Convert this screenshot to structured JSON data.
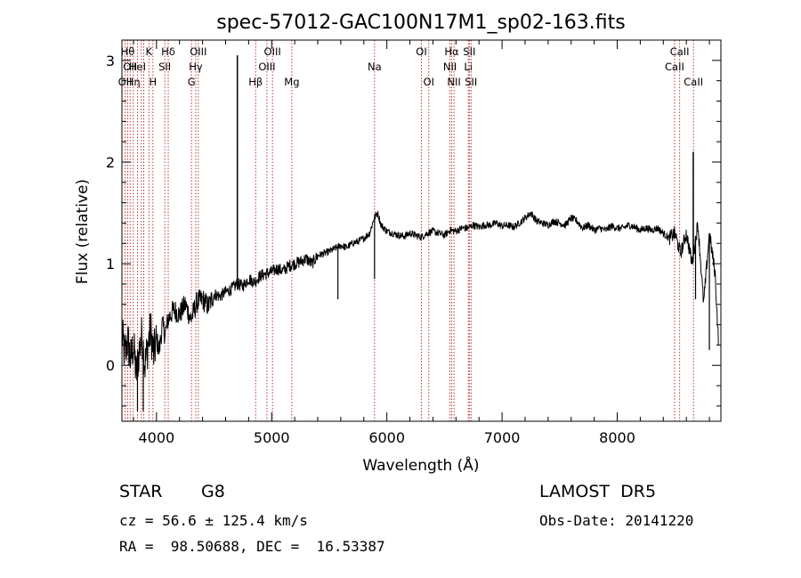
{
  "chart_data": {
    "type": "line",
    "title": "spec-57012-GAC100N17M1_sp02-163.fits",
    "xlabel": "Wavelength (Å)",
    "ylabel": "Flux (relative)",
    "xlim": [
      3700,
      8900
    ],
    "ylim": [
      -0.55,
      3.2
    ],
    "x_ticks": [
      4000,
      5000,
      6000,
      7000,
      8000
    ],
    "y_ticks": [
      0,
      1,
      2,
      3
    ],
    "grid": false,
    "series": [
      {
        "x": [
          3700,
          3725,
          3750,
          3775,
          3800,
          3825,
          3850,
          3875,
          3900,
          3925,
          3950,
          3975,
          4000,
          4025,
          4050,
          4075,
          4100,
          4150,
          4200,
          4250,
          4300,
          4350,
          4400,
          4450,
          4500,
          4550,
          4600,
          4650,
          4700,
          4750,
          4800,
          4850,
          4900,
          4950,
          5000,
          5050,
          5100,
          5150,
          5200,
          5250,
          5300,
          5350,
          5400,
          5450,
          5500,
          5550,
          5600,
          5650,
          5700,
          5750,
          5800,
          5850,
          5890,
          5920,
          5950,
          6000,
          6050,
          6100,
          6150,
          6200,
          6250,
          6300,
          6350,
          6400,
          6450,
          6500,
          6550,
          6600,
          6650,
          6700,
          6750,
          6800,
          6850,
          6900,
          6950,
          7000,
          7050,
          7100,
          7150,
          7200,
          7250,
          7300,
          7350,
          7400,
          7450,
          7500,
          7550,
          7600,
          7650,
          7700,
          7750,
          7800,
          7850,
          7900,
          7950,
          8000,
          8050,
          8100,
          8150,
          8200,
          8250,
          8300,
          8350,
          8400,
          8450,
          8500,
          8550,
          8600,
          8650,
          8700,
          8750,
          8800,
          8850,
          8880
        ],
        "y": [
          0.3,
          0.1,
          0.25,
          0.05,
          0.2,
          -0.1,
          0.15,
          0.3,
          0.0,
          0.2,
          0.35,
          0.1,
          0.25,
          0.15,
          0.4,
          0.3,
          0.45,
          0.55,
          0.5,
          0.6,
          0.45,
          0.62,
          0.65,
          0.58,
          0.7,
          0.68,
          0.72,
          0.75,
          0.8,
          0.78,
          0.85,
          0.82,
          0.88,
          0.9,
          0.92,
          0.95,
          0.93,
          0.98,
          1.0,
          1.02,
          1.05,
          1.0,
          1.08,
          1.1,
          1.12,
          1.15,
          1.18,
          1.16,
          1.2,
          1.22,
          1.25,
          1.3,
          1.45,
          1.5,
          1.38,
          1.32,
          1.3,
          1.28,
          1.27,
          1.3,
          1.28,
          1.26,
          1.3,
          1.32,
          1.3,
          1.28,
          1.33,
          1.32,
          1.35,
          1.35,
          1.38,
          1.36,
          1.38,
          1.38,
          1.4,
          1.37,
          1.38,
          1.36,
          1.4,
          1.45,
          1.5,
          1.42,
          1.4,
          1.38,
          1.42,
          1.4,
          1.38,
          1.45,
          1.42,
          1.35,
          1.38,
          1.33,
          1.35,
          1.33,
          1.37,
          1.35,
          1.35,
          1.38,
          1.36,
          1.33,
          1.35,
          1.33,
          1.35,
          1.3,
          1.25,
          1.3,
          1.1,
          1.3,
          1.0,
          1.4,
          0.6,
          1.3,
          0.9,
          0.2
        ]
      }
    ],
    "spikes": [
      {
        "x": 4702,
        "y": 3.05
      },
      {
        "x": 8660,
        "y": 2.1
      }
    ],
    "dips": [
      {
        "x": 3835,
        "y": -0.45
      },
      {
        "x": 3885,
        "y": -0.45
      },
      {
        "x": 5575,
        "y": 0.65
      },
      {
        "x": 5893,
        "y": 0.85
      },
      {
        "x": 8680,
        "y": 0.65
      },
      {
        "x": 8800,
        "y": 0.15
      }
    ],
    "lines": [
      {
        "x": 3727,
        "labels": [
          {
            "text": "OII",
            "row": 2
          }
        ]
      },
      {
        "x": 3750,
        "labels": [
          {
            "text": "Hθ",
            "row": 0
          }
        ]
      },
      {
        "x": 3771,
        "labels": [
          {
            "text": "OII",
            "row": 1
          }
        ]
      },
      {
        "x": 3798,
        "labels": [
          {
            "text": "Hη",
            "row": 2
          }
        ]
      },
      {
        "x": 3835,
        "labels": [
          {
            "text": "HeI",
            "row": 1
          }
        ]
      },
      {
        "x": 3869,
        "labels": []
      },
      {
        "x": 3889,
        "labels": []
      },
      {
        "x": 3934,
        "labels": [
          {
            "text": "K",
            "row": 0
          }
        ]
      },
      {
        "x": 3969,
        "labels": [
          {
            "text": "H",
            "row": 2
          }
        ]
      },
      {
        "x": 4072,
        "labels": [
          {
            "text": "SII",
            "row": 1
          }
        ]
      },
      {
        "x": 4102,
        "labels": [
          {
            "text": "Hδ",
            "row": 0
          }
        ]
      },
      {
        "x": 4304,
        "labels": [
          {
            "text": "G",
            "row": 2
          }
        ]
      },
      {
        "x": 4341,
        "labels": [
          {
            "text": "Hγ",
            "row": 1
          }
        ]
      },
      {
        "x": 4363,
        "labels": [
          {
            "text": "OIII",
            "row": 0
          }
        ]
      },
      {
        "x": 4861,
        "labels": [
          {
            "text": "Hβ",
            "row": 2
          }
        ]
      },
      {
        "x": 4959,
        "labels": [
          {
            "text": "OIII",
            "row": 1
          }
        ]
      },
      {
        "x": 5007,
        "labels": [
          {
            "text": "OIII",
            "row": 0
          }
        ]
      },
      {
        "x": 5175,
        "labels": [
          {
            "text": "Mg",
            "row": 2
          }
        ]
      },
      {
        "x": 5893,
        "labels": [
          {
            "text": "Na",
            "row": 1
          }
        ]
      },
      {
        "x": 6300,
        "labels": [
          {
            "text": "OI",
            "row": 0
          }
        ]
      },
      {
        "x": 6364,
        "labels": [
          {
            "text": "OI",
            "row": 2
          }
        ]
      },
      {
        "x": 6548,
        "labels": [
          {
            "text": "NII",
            "row": 1
          }
        ]
      },
      {
        "x": 6563,
        "labels": [
          {
            "text": "Hα",
            "row": 0
          }
        ]
      },
      {
        "x": 6583,
        "labels": [
          {
            "text": "NII",
            "row": 2
          }
        ]
      },
      {
        "x": 6707,
        "labels": [
          {
            "text": "Li",
            "row": 1
          }
        ]
      },
      {
        "x": 6716,
        "labels": [
          {
            "text": "SII",
            "row": 0
          }
        ]
      },
      {
        "x": 6731,
        "labels": [
          {
            "text": "SII",
            "row": 2
          }
        ]
      },
      {
        "x": 8498,
        "labels": [
          {
            "text": "CaII",
            "row": 1
          }
        ]
      },
      {
        "x": 8542,
        "labels": [
          {
            "text": "CaII",
            "row": 0
          }
        ]
      },
      {
        "x": 8662,
        "labels": [
          {
            "text": "CaII",
            "row": 2
          }
        ]
      }
    ]
  },
  "colors": {
    "spectrum": "#000000",
    "line_marker": "#b22222",
    "axis": "#000000",
    "background": "#ffffff"
  },
  "info": {
    "object_class": "STAR",
    "subclass": "G8",
    "survey": "LAMOST  DR5",
    "redshift_line": "cz = 56.6 ± 125.4 km/s",
    "obs_date": "Obs-Date: 20141220",
    "coords": "RA =  98.50688, DEC =  16.53387"
  }
}
